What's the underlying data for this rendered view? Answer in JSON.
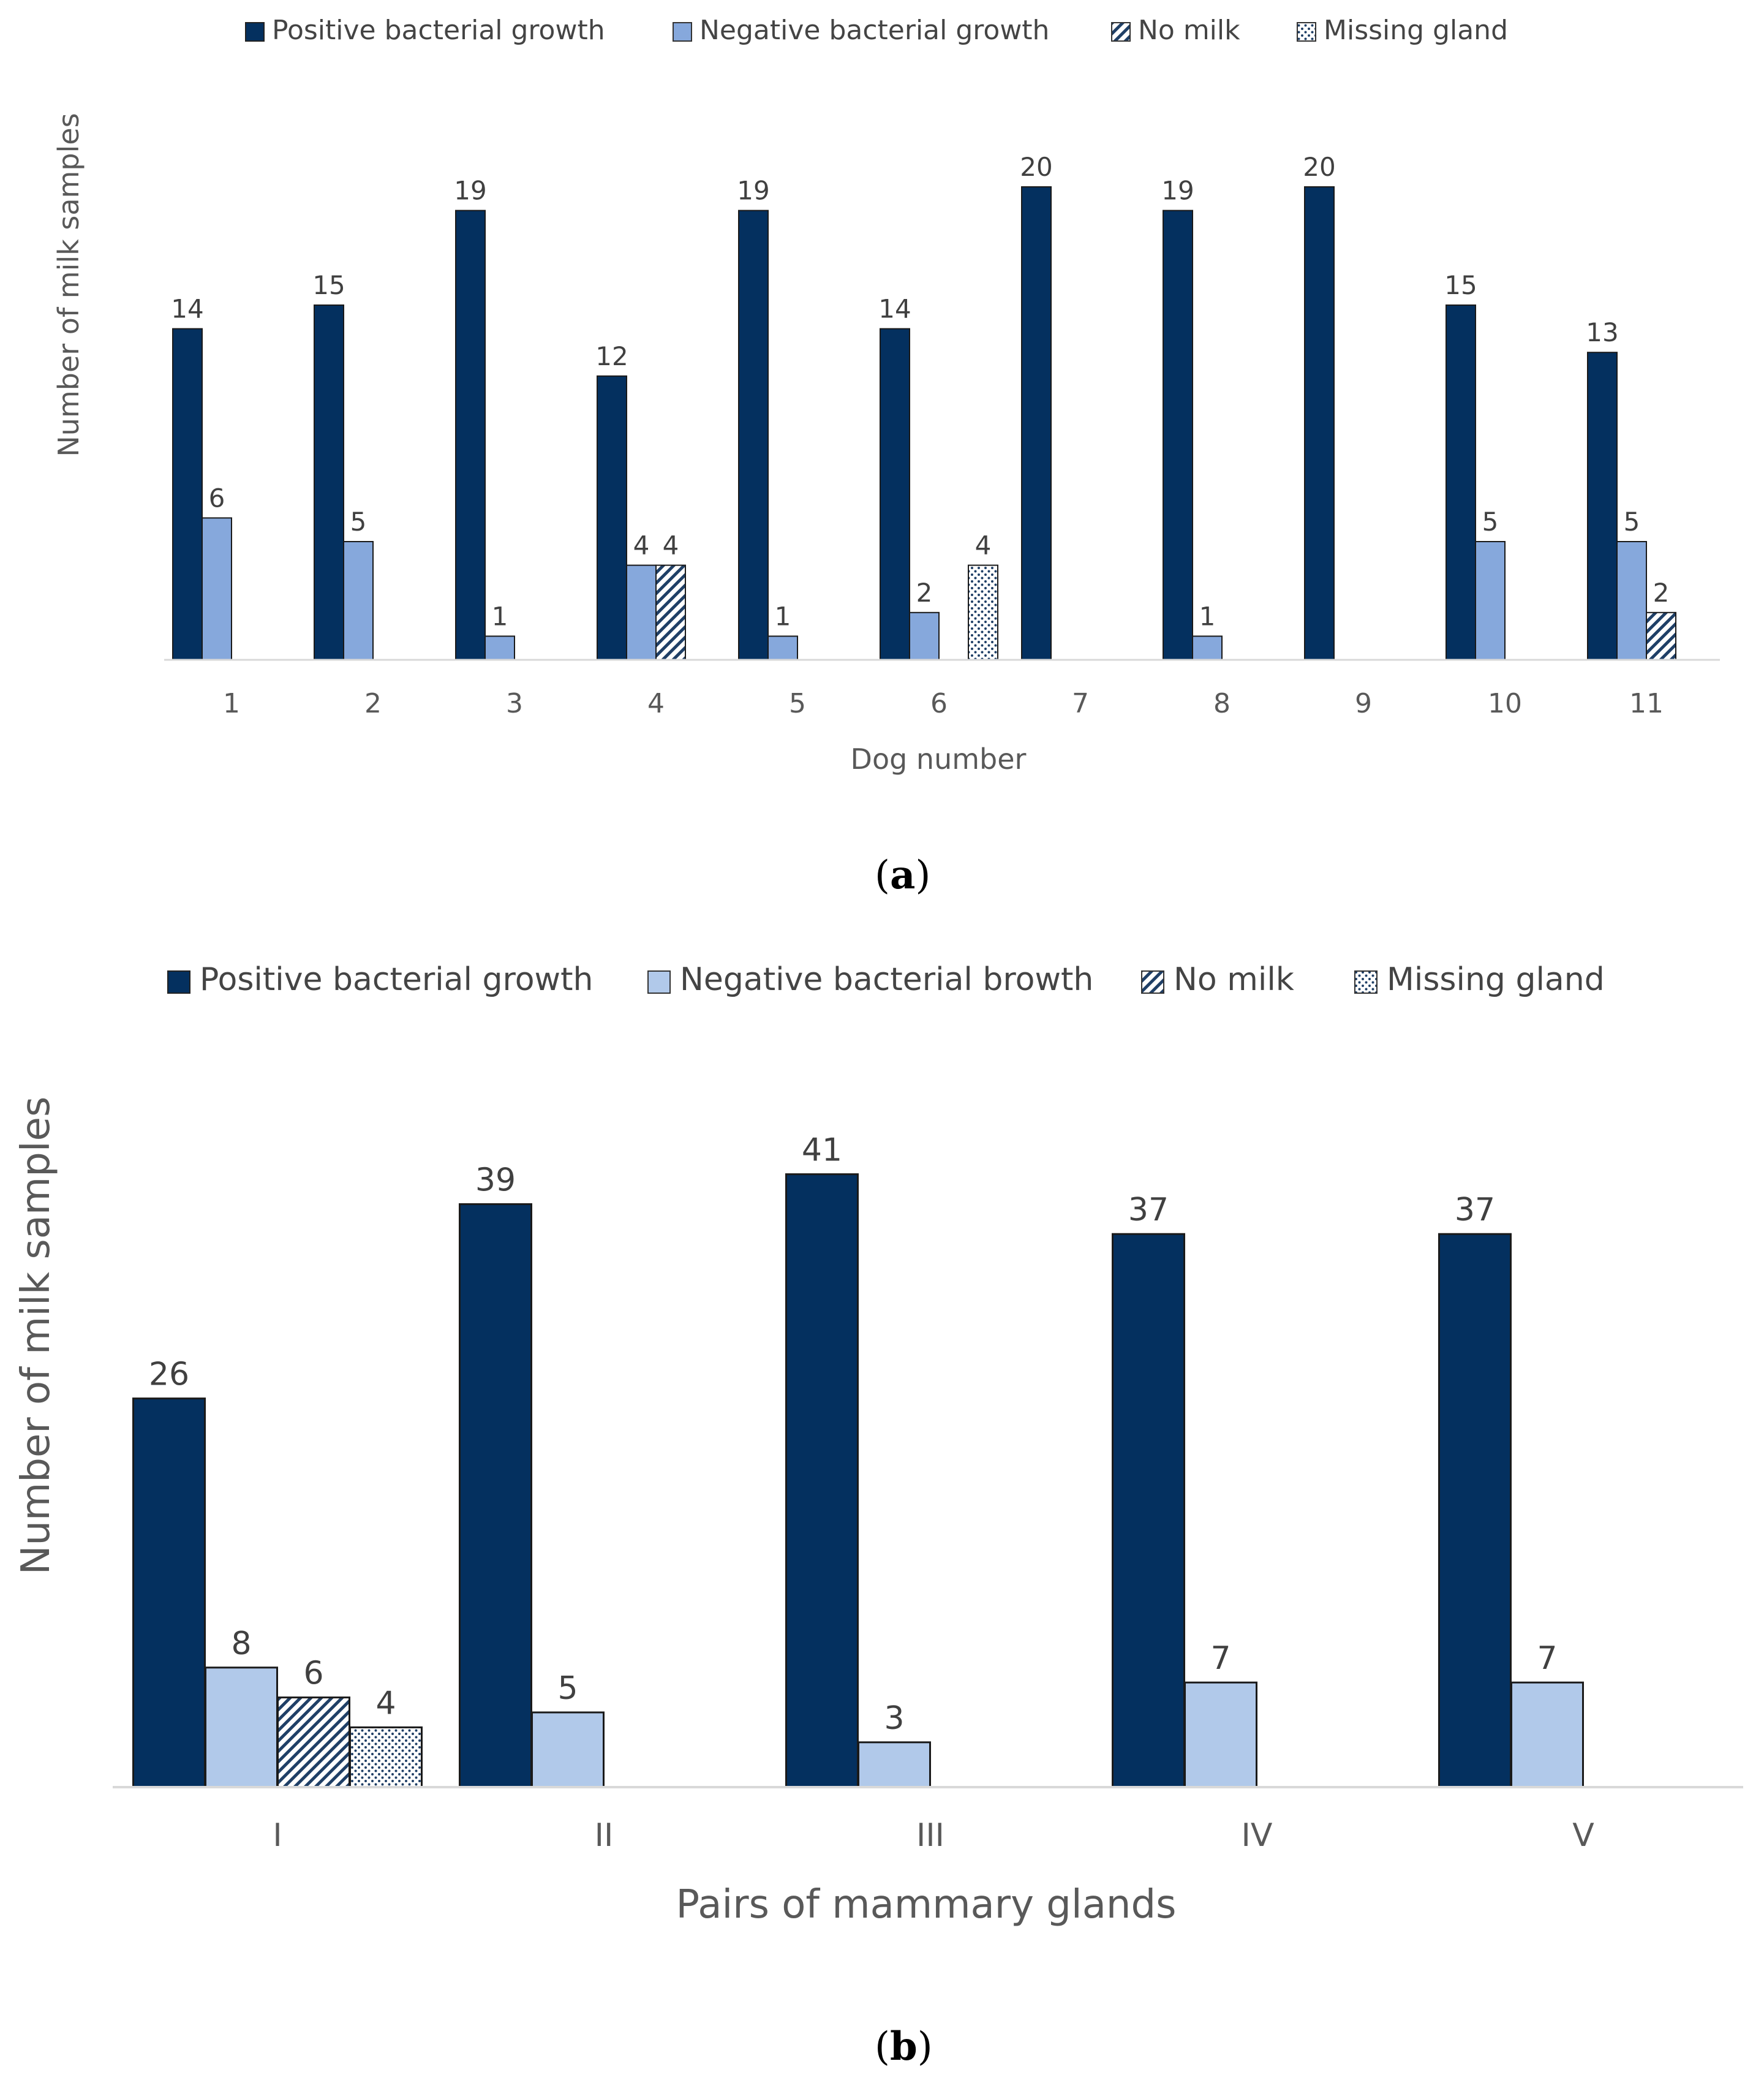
{
  "chart_data": [
    {
      "type": "bar",
      "panel_label": "a",
      "title": "",
      "xlabel": "Dog number",
      "ylabel": "Number of milk samples",
      "ylim": [
        0,
        20
      ],
      "grid": false,
      "legend_position": "top",
      "categories": [
        "1",
        "2",
        "3",
        "4",
        "5",
        "6",
        "7",
        "8",
        "9",
        "10",
        "11"
      ],
      "series": [
        {
          "name": "Positive bacterial growth",
          "color": "#04305f",
          "pattern": "solid",
          "values": [
            14,
            15,
            19,
            12,
            19,
            14,
            20,
            19,
            20,
            15,
            13
          ]
        },
        {
          "name": "Negative bacterial growth",
          "color": "#86a8dc",
          "pattern": "solid",
          "values": [
            6,
            5,
            1,
            4,
            1,
            2,
            0,
            1,
            0,
            5,
            5
          ]
        },
        {
          "name": "No milk",
          "color": "#1f3f66",
          "pattern": "diagonal-hatch",
          "values": [
            0,
            0,
            0,
            4,
            0,
            0,
            0,
            0,
            0,
            0,
            2
          ]
        },
        {
          "name": "Missing gland",
          "color": "#1f3f66",
          "pattern": "dots",
          "values": [
            0,
            0,
            0,
            0,
            0,
            4,
            0,
            0,
            0,
            0,
            0
          ]
        }
      ]
    },
    {
      "type": "bar",
      "panel_label": "b",
      "title": "",
      "xlabel": "Pairs of mammary  glands",
      "ylabel": "Number of milk samples",
      "ylim": [
        0,
        41
      ],
      "grid": false,
      "legend_position": "top",
      "categories": [
        "I",
        "II",
        "III",
        "IV",
        "V"
      ],
      "series": [
        {
          "name": "Positive bacterial growth",
          "color": "#04305f",
          "pattern": "solid",
          "values": [
            26,
            39,
            41,
            37,
            37
          ]
        },
        {
          "name": "Negative bacterial browth",
          "color": "#b1c9ea",
          "pattern": "solid",
          "values": [
            8,
            5,
            3,
            7,
            7
          ]
        },
        {
          "name": "No milk",
          "color": "#1f3f66",
          "pattern": "diagonal-hatch",
          "values": [
            6,
            0,
            0,
            0,
            0
          ]
        },
        {
          "name": "Missing gland",
          "color": "#1f3f66",
          "pattern": "dots",
          "values": [
            4,
            0,
            0,
            0,
            0
          ]
        }
      ]
    }
  ]
}
